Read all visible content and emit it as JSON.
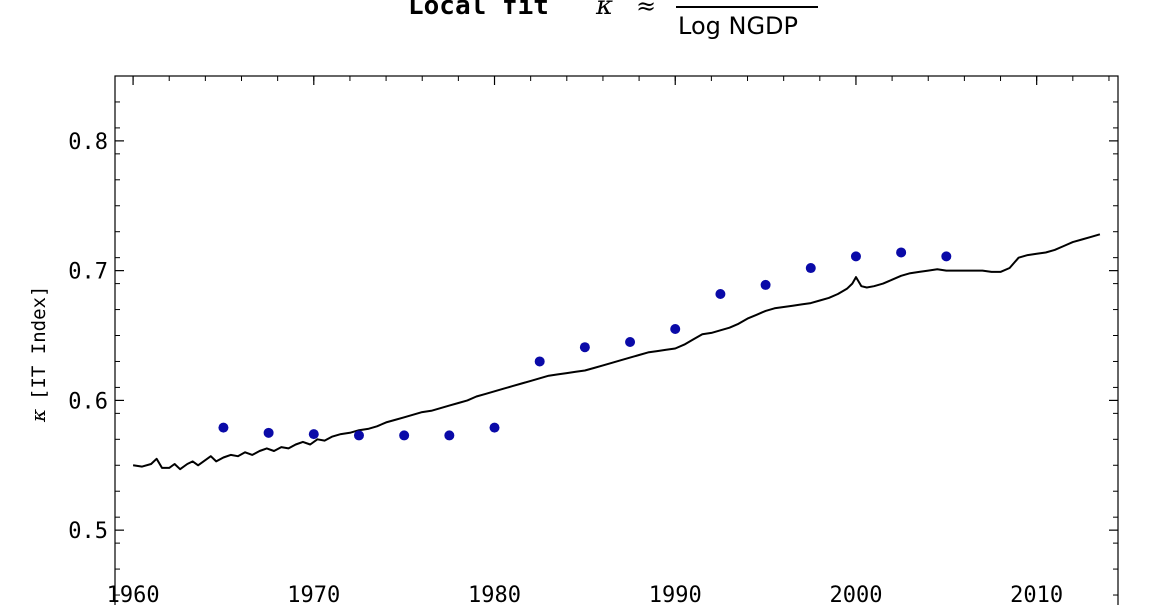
{
  "title": {
    "prefix": "Local fit",
    "kappa": "κ",
    "approx": "≈",
    "denominator": "Log NGDP"
  },
  "chart_data": {
    "type": "line",
    "ylabel_symbol": "κ",
    "ylabel_text": "[IT Index]",
    "xlim": [
      1959,
      2014.5
    ],
    "ylim": [
      0.44,
      0.85
    ],
    "xticks": [
      1960,
      1970,
      1980,
      1990,
      2000,
      2010
    ],
    "xtick_labels": [
      "1960",
      "1970",
      "1980",
      "1990",
      "2000",
      "2010"
    ],
    "yticks": [
      0.5,
      0.6,
      0.7,
      0.8
    ],
    "ytick_labels": [
      "0.5",
      "0.6",
      "0.7",
      "0.8"
    ],
    "grid": false,
    "colors": {
      "line": "#000000",
      "points": "#0a0aa8"
    },
    "series": [
      {
        "type": "line",
        "x": [
          1960.0,
          1960.5,
          1961.0,
          1961.3,
          1961.6,
          1962.0,
          1962.3,
          1962.6,
          1963.0,
          1963.3,
          1963.6,
          1964.0,
          1964.3,
          1964.6,
          1965.0,
          1965.4,
          1965.8,
          1966.2,
          1966.6,
          1967.0,
          1967.4,
          1967.8,
          1968.2,
          1968.6,
          1969.0,
          1969.4,
          1969.8,
          1970.2,
          1970.6,
          1971.0,
          1971.5,
          1972.0,
          1972.5,
          1973.0,
          1973.5,
          1974.0,
          1974.5,
          1975.0,
          1975.5,
          1976.0,
          1976.5,
          1977.0,
          1977.5,
          1978.0,
          1978.5,
          1979.0,
          1979.5,
          1980.0,
          1980.5,
          1981.0,
          1981.5,
          1982.0,
          1982.5,
          1983.0,
          1983.5,
          1984.0,
          1984.5,
          1985.0,
          1985.5,
          1986.0,
          1986.5,
          1987.0,
          1987.5,
          1988.0,
          1988.5,
          1989.0,
          1989.5,
          1990.0,
          1990.5,
          1991.0,
          1991.5,
          1992.0,
          1992.5,
          1993.0,
          1993.5,
          1994.0,
          1994.5,
          1995.0,
          1995.5,
          1996.0,
          1996.5,
          1997.0,
          1997.5,
          1998.0,
          1998.5,
          1999.0,
          1999.5,
          1999.8,
          2000.0,
          2000.3,
          2000.6,
          2001.0,
          2001.5,
          2002.0,
          2002.5,
          2003.0,
          2003.5,
          2004.0,
          2004.5,
          2005.0,
          2005.5,
          2006.0,
          2006.5,
          2007.0,
          2007.5,
          2008.0,
          2008.5,
          2009.0,
          2009.5,
          2010.0,
          2010.5,
          2011.0,
          2011.5,
          2012.0,
          2012.5,
          2013.0,
          2013.5
        ],
        "y": [
          0.55,
          0.549,
          0.551,
          0.555,
          0.548,
          0.548,
          0.551,
          0.547,
          0.551,
          0.553,
          0.55,
          0.554,
          0.557,
          0.553,
          0.556,
          0.558,
          0.557,
          0.56,
          0.558,
          0.561,
          0.563,
          0.561,
          0.564,
          0.563,
          0.566,
          0.568,
          0.566,
          0.57,
          0.569,
          0.572,
          0.574,
          0.575,
          0.577,
          0.578,
          0.58,
          0.583,
          0.585,
          0.587,
          0.589,
          0.591,
          0.592,
          0.594,
          0.596,
          0.598,
          0.6,
          0.603,
          0.605,
          0.607,
          0.609,
          0.611,
          0.613,
          0.615,
          0.617,
          0.619,
          0.62,
          0.621,
          0.622,
          0.623,
          0.625,
          0.627,
          0.629,
          0.631,
          0.633,
          0.635,
          0.637,
          0.638,
          0.639,
          0.64,
          0.643,
          0.647,
          0.651,
          0.652,
          0.654,
          0.656,
          0.659,
          0.663,
          0.666,
          0.669,
          0.671,
          0.672,
          0.673,
          0.674,
          0.675,
          0.677,
          0.679,
          0.682,
          0.686,
          0.69,
          0.695,
          0.688,
          0.687,
          0.688,
          0.69,
          0.693,
          0.696,
          0.698,
          0.699,
          0.7,
          0.701,
          0.7,
          0.7,
          0.7,
          0.7,
          0.7,
          0.699,
          0.699,
          0.702,
          0.71,
          0.712,
          0.713,
          0.714,
          0.716,
          0.719,
          0.722,
          0.724,
          0.726,
          0.728
        ]
      },
      {
        "type": "scatter",
        "x": [
          1965.0,
          1967.5,
          1970.0,
          1972.5,
          1975.0,
          1977.5,
          1980.0,
          1982.5,
          1985.0,
          1987.5,
          1990.0,
          1992.5,
          1995.0,
          1997.5,
          2000.0,
          2002.5,
          2005.0
        ],
        "y": [
          0.579,
          0.575,
          0.574,
          0.573,
          0.573,
          0.573,
          0.579,
          0.63,
          0.641,
          0.645,
          0.655,
          0.682,
          0.689,
          0.702,
          0.711,
          0.714,
          0.711
        ]
      }
    ]
  }
}
